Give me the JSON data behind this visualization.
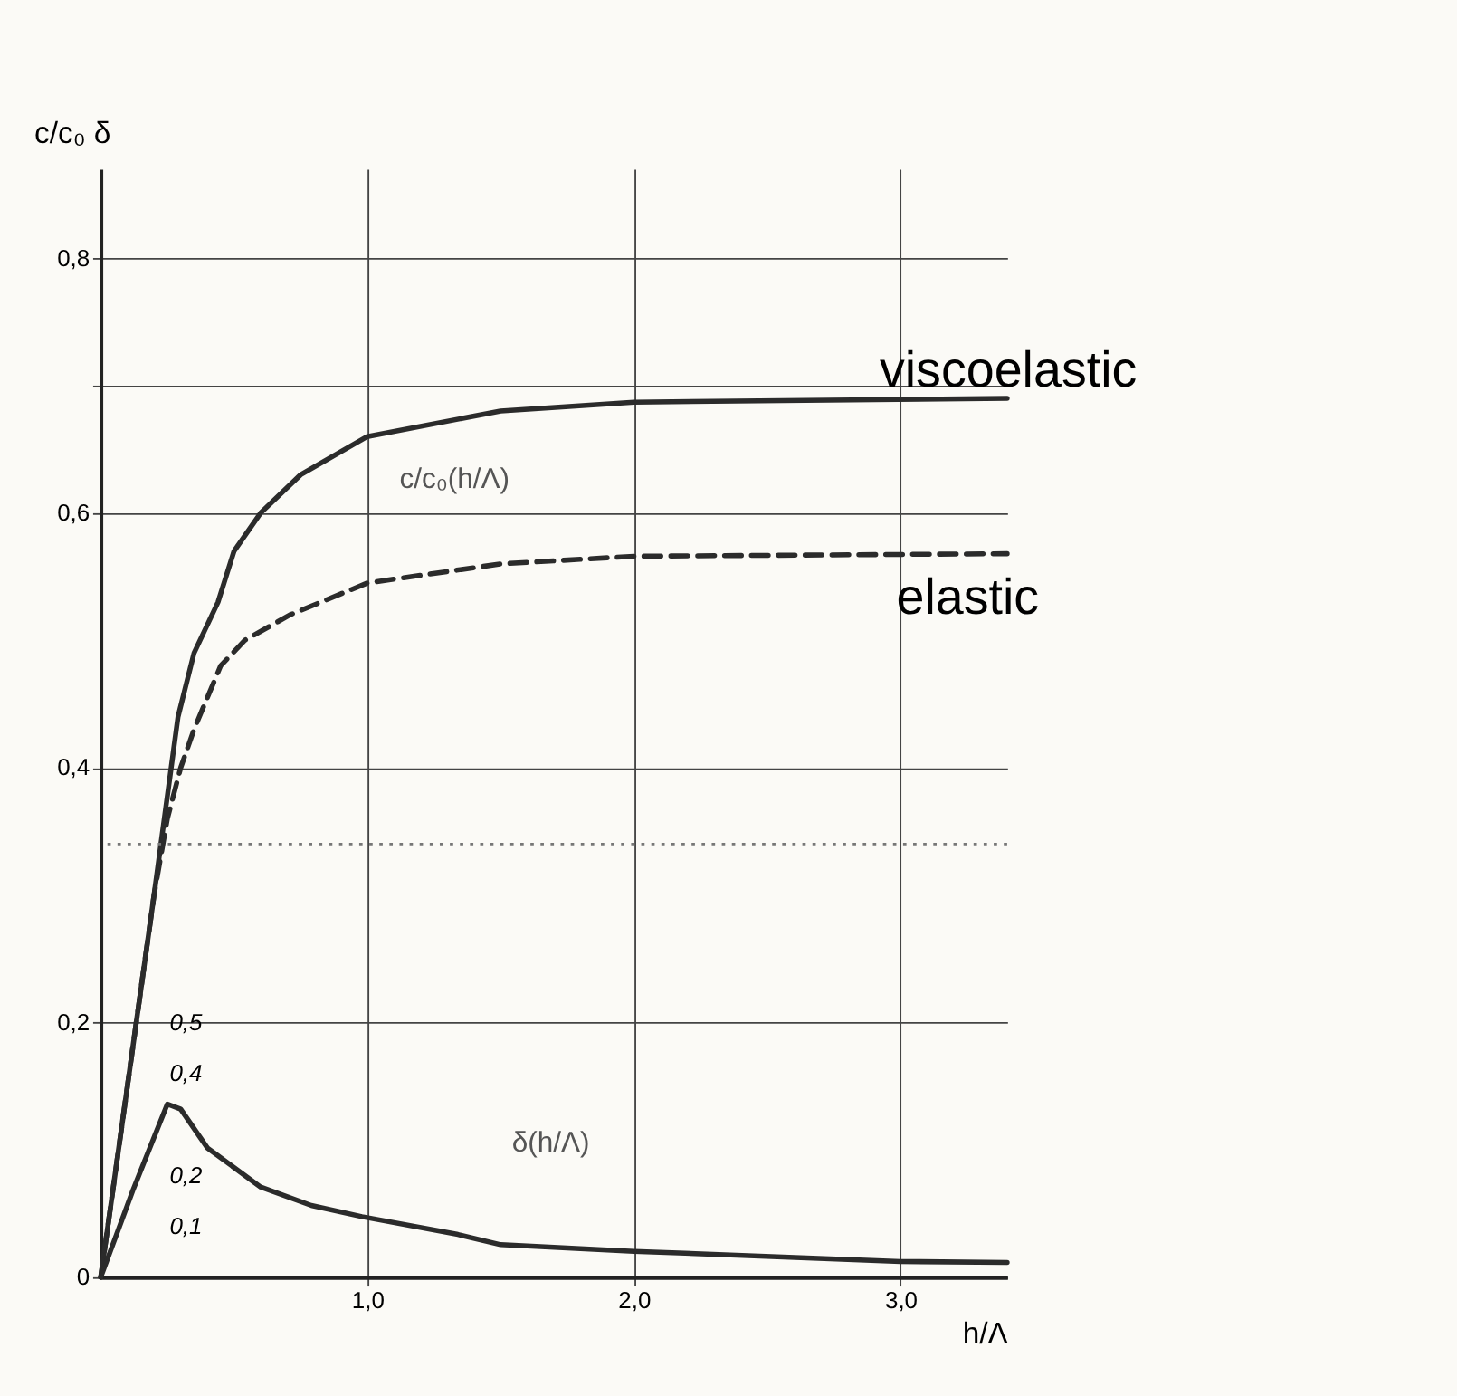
{
  "chart_data": {
    "type": "line",
    "xlabel": "h/Λ",
    "ylabel": "c/c₀  δ",
    "xlim": [
      0,
      3.4
    ],
    "ylim": [
      0,
      0.87
    ],
    "y2lim": [
      0,
      2.175
    ],
    "xticks": [
      {
        "value": 1,
        "label": "1,0"
      },
      {
        "value": 2,
        "label": "2,0"
      },
      {
        "value": 3,
        "label": "3,0"
      }
    ],
    "yticks": [
      0,
      {
        "value": 0.2,
        "label": "0,2"
      },
      {
        "value": 0.4,
        "label": "0,4"
      },
      {
        "value": 0.6,
        "label": "0,6"
      },
      {
        "value": 0.7,
        "label": null
      },
      {
        "value": 0.8,
        "label": "0,8"
      }
    ],
    "y2ticks": [
      {
        "value": 0.1,
        "label": "0,1"
      },
      {
        "value": 0.2,
        "label": "0,2"
      },
      {
        "value": 0.4,
        "label": "0,4"
      },
      {
        "value": 0.5,
        "label": "0,5"
      }
    ],
    "grid": true,
    "marker": "none",
    "series": [
      {
        "name": "viscoelastic",
        "color": "#2b2b2b",
        "line_style": "solid",
        "x": [
          0,
          0.1,
          0.2,
          0.29,
          0.35,
          0.44,
          0.5,
          0.6,
          0.75,
          1.0,
          1.5,
          2.0,
          3.4
        ],
        "values": [
          0,
          0.15,
          0.3,
          0.44,
          0.49,
          0.53,
          0.57,
          0.6,
          0.63,
          0.66,
          0.68,
          0.687,
          0.69
        ]
      },
      {
        "name": "elastic",
        "color": "#2b2b2b",
        "line_style": "dashed",
        "x": [
          0,
          0.2,
          0.25,
          0.3,
          0.35,
          0.45,
          0.54,
          0.71,
          1.0,
          1.5,
          2.0,
          3.4
        ],
        "values": [
          0,
          0.3,
          0.36,
          0.4,
          0.43,
          0.48,
          0.5,
          0.52,
          0.545,
          0.56,
          0.566,
          0.568
        ]
      },
      {
        "color": "#2b2b2b",
        "line_style": "solid",
        "axis": "y2",
        "x": [
          0,
          0.12,
          0.25,
          0.3,
          0.4,
          0.6,
          0.79,
          0.98,
          1.34,
          1.5,
          2.0,
          3.0,
          3.4
        ],
        "values": [
          0,
          0.17,
          0.34,
          0.33,
          0.254,
          0.177,
          0.141,
          0.119,
          0.084,
          0.064,
          0.051,
          0.031,
          0.029
        ]
      }
    ],
    "ref_lines": [
      {
        "axis": "y",
        "value": 0.34,
        "line_style": "dotted",
        "color": "#777777"
      }
    ],
    "annotations": [
      "c/c₀(h/Λ)",
      "δ(h/Λ)"
    ]
  }
}
